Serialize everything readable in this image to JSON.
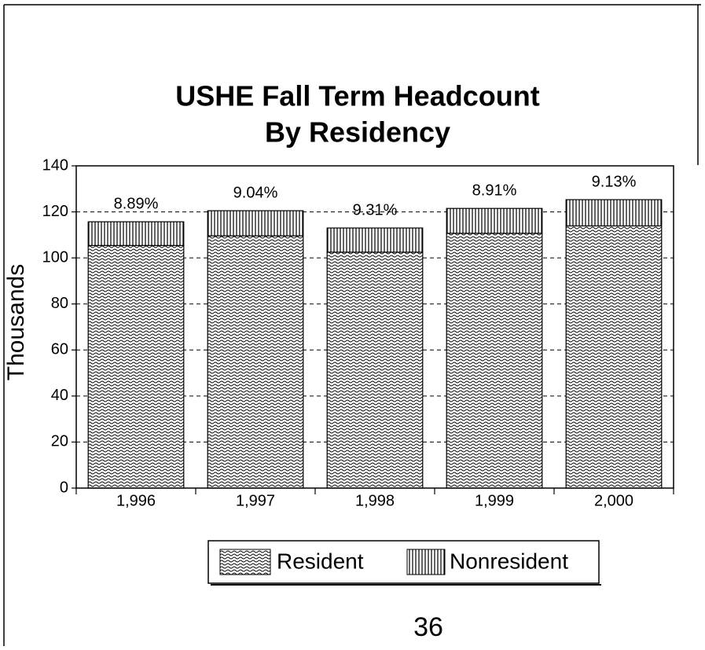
{
  "chart_data": {
    "type": "stacked_bar",
    "title": [
      "USHE Fall Term Headcount",
      "By Residency"
    ],
    "y_label": "Thousands",
    "categories": [
      "1,996",
      "1,997",
      "1,998",
      "1,999",
      "2,000"
    ],
    "series": [
      {
        "name": "Resident",
        "color": "#000000",
        "pattern": "wave",
        "values": [
          105.4,
          109.6,
          102.5,
          110.7,
          113.9
        ]
      },
      {
        "name": "Nonresident",
        "color": "#000000",
        "pattern": "vertical",
        "values": [
          10.3,
          10.9,
          10.5,
          10.8,
          11.4
        ]
      }
    ],
    "annotations": [
      "8.89%",
      "9.04%",
      "9.31%",
      "8.91%",
      "9.13%"
    ],
    "ylim": [
      0,
      140
    ],
    "yticks": [
      0,
      20,
      40,
      60,
      80,
      100,
      120,
      140
    ],
    "grid": true,
    "legend": "bottom"
  },
  "page_number": "36"
}
